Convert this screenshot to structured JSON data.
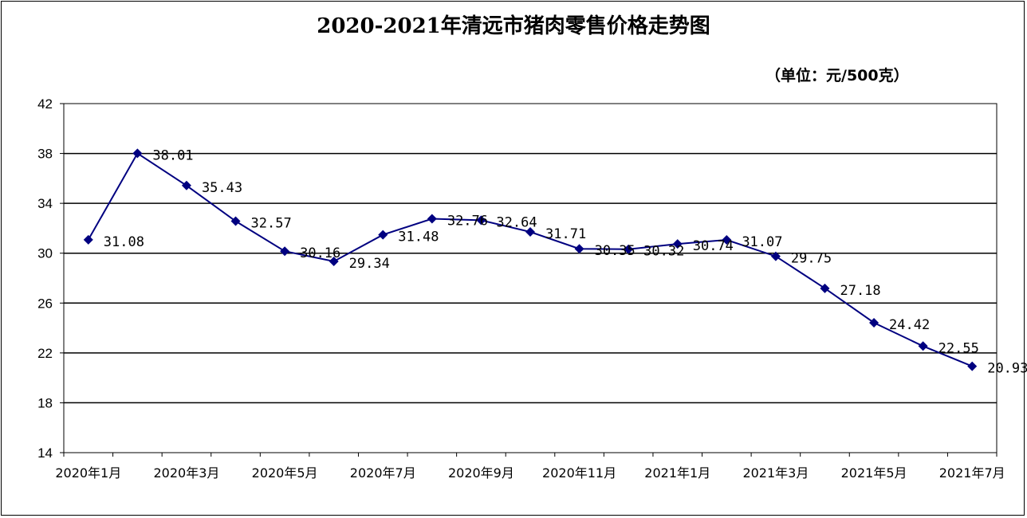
{
  "title": "2020-2021年清远市猪肉零售价格走势图",
  "unit_label": "（单位：元/500克）",
  "colors": {
    "line": "#000080",
    "marker": "#000080",
    "grid": "#000000"
  },
  "chart_data": {
    "type": "line",
    "title": "2020-2021年清远市猪肉零售价格走势图",
    "ylabel": "（单位：元/500克）",
    "xlabel": "",
    "ylim": [
      14,
      42
    ],
    "yticks": [
      14,
      18,
      22,
      26,
      30,
      34,
      38,
      42
    ],
    "x_tick_labels": [
      "2020年1月",
      "2020年3月",
      "2020年5月",
      "2020年7月",
      "2020年9月",
      "2020年11月",
      "2021年1月",
      "2021年3月",
      "2021年5月",
      "2021年7月"
    ],
    "x": [
      "2020年1月",
      "2020年2月",
      "2020年3月",
      "2020年4月",
      "2020年5月",
      "2020年6月",
      "2020年7月",
      "2020年8月",
      "2020年9月",
      "2020年10月",
      "2020年11月",
      "2020年12月",
      "2021年1月",
      "2021年2月",
      "2021年3月",
      "2021年4月",
      "2021年5月",
      "2021年6月",
      "2021年7月"
    ],
    "values": [
      31.08,
      38.01,
      35.43,
      32.57,
      30.16,
      29.34,
      31.48,
      32.76,
      32.64,
      31.71,
      30.35,
      30.32,
      30.74,
      31.07,
      29.75,
      27.18,
      24.42,
      22.55,
      20.93
    ],
    "data_labels": [
      "31.08",
      "38.01",
      "35.43",
      "32.57",
      "30.16",
      "29.34",
      "31.48",
      "32.76",
      "32.64",
      "31.71",
      "30.35",
      "30.32",
      "30.74",
      "31.07",
      "29.75",
      "27.18",
      "24.42",
      "22.55",
      "20.93"
    ],
    "grid": true,
    "legend": "none"
  }
}
